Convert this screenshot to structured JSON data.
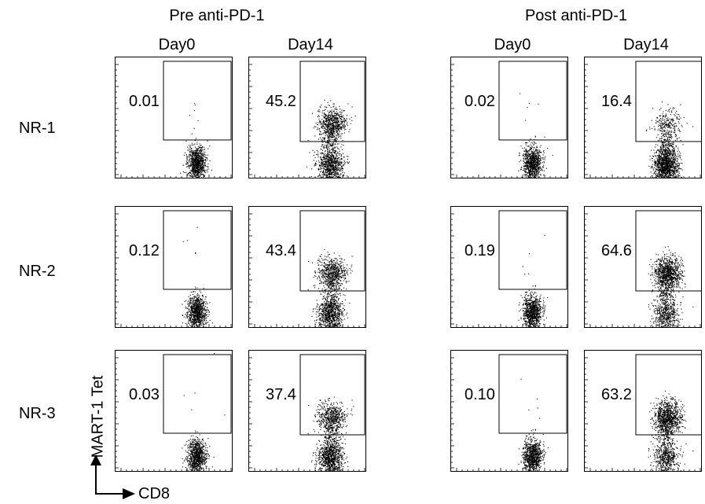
{
  "groups": [
    {
      "id": "pre",
      "label": "Pre anti-PD-1"
    },
    {
      "id": "post",
      "label": "Post anti-PD-1"
    }
  ],
  "columns": [
    {
      "group": "pre",
      "label": "Day0"
    },
    {
      "group": "pre",
      "label": "Day14"
    },
    {
      "group": "post",
      "label": "Day0"
    },
    {
      "group": "post",
      "label": "Day14"
    }
  ],
  "rows": [
    {
      "label": "NR-1",
      "values": [
        "0.01",
        "45.2",
        "0.02",
        "16.4"
      ]
    },
    {
      "label": "NR-2",
      "values": [
        "0.12",
        "43.4",
        "0.19",
        "64.6"
      ]
    },
    {
      "label": "NR-3",
      "values": [
        "0.03",
        "37.4",
        "0.10",
        "63.2"
      ]
    }
  ],
  "axes": {
    "x_label": "CD8",
    "y_label": "MART-1 Tet"
  }
}
